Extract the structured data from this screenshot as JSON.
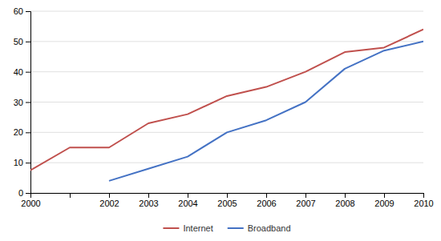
{
  "chart_data": {
    "type": "line",
    "categories": [
      "2000",
      null,
      "2002",
      "2003",
      "2004",
      "2005",
      "2006",
      "2007",
      "2008",
      "2009",
      "2010"
    ],
    "series": [
      {
        "name": "Internet",
        "color": "#C0504D",
        "values": [
          7.5,
          15,
          15,
          23,
          26,
          32,
          35,
          40,
          46.5,
          48,
          54
        ]
      },
      {
        "name": "Broadband",
        "color": "#4472C4",
        "values": [
          null,
          null,
          4,
          8,
          12,
          20,
          24,
          30,
          41,
          47,
          50
        ]
      }
    ],
    "ylim": [
      0,
      60
    ],
    "yticks": [
      0,
      10,
      20,
      30,
      40,
      50,
      60
    ],
    "grid": true,
    "legend": "bottom"
  }
}
